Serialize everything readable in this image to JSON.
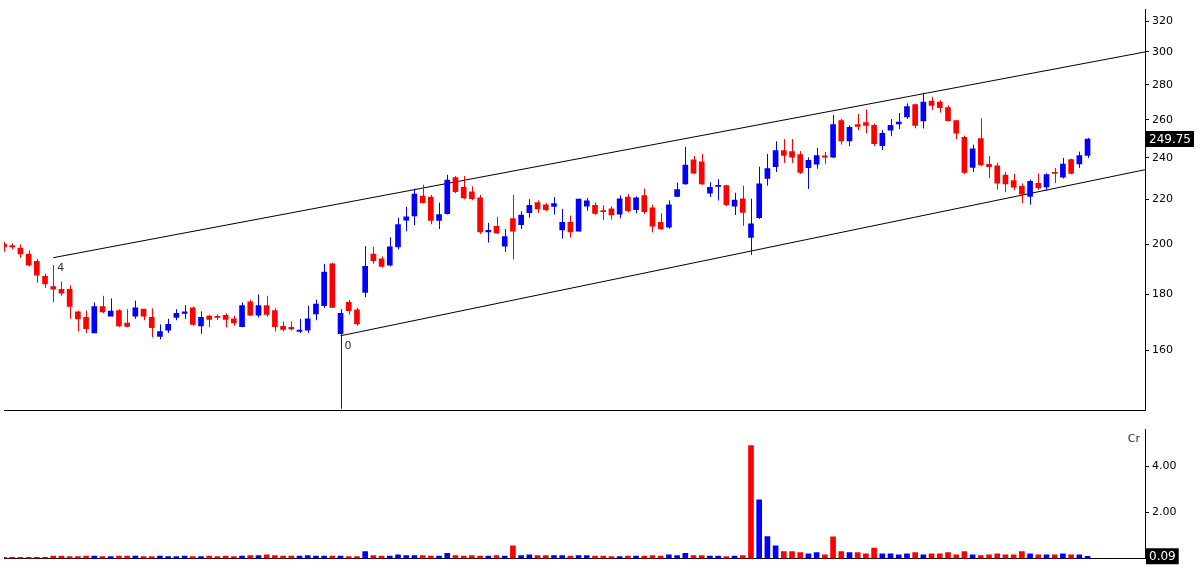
{
  "chart_data": [
    {
      "type": "candlestick",
      "log": true,
      "ylim": [
        141,
        328
      ],
      "yticks": [
        160,
        180,
        200,
        220,
        240,
        260,
        280,
        300,
        320
      ],
      "tick_labels": "y",
      "categories": [
        null,
        null,
        null,
        null,
        null,
        null,
        null,
        null,
        null,
        null,
        null,
        null,
        null,
        null,
        null,
        null,
        null,
        null,
        null,
        null,
        null,
        null,
        null,
        null,
        null,
        null,
        null,
        null,
        null,
        null,
        null,
        null,
        null,
        null,
        null,
        null,
        null,
        null,
        null,
        null,
        null,
        null,
        null,
        null,
        null,
        null,
        null,
        null,
        null,
        null,
        null,
        null,
        null,
        null,
        null,
        null,
        null,
        null,
        null,
        null,
        null,
        null,
        null,
        null,
        null,
        null,
        null,
        null,
        null,
        null,
        null,
        null,
        null,
        null,
        null,
        null,
        null,
        null,
        null,
        null,
        null,
        null,
        null,
        null,
        null,
        null,
        null,
        null,
        null,
        null,
        null,
        null,
        null,
        null,
        null,
        null,
        null,
        null,
        null,
        null,
        null,
        null,
        null,
        null,
        null,
        null,
        null,
        null,
        null,
        null,
        null,
        null,
        null,
        null,
        null,
        null,
        null,
        null,
        null,
        null,
        null,
        null,
        null,
        null,
        null,
        null,
        null,
        null,
        null,
        null,
        null,
        null,
        null,
        null,
        null,
        null,
        null,
        null,
        null,
        null
      ],
      "ohlc": [
        [
          200,
          201,
          197,
          199
        ],
        [
          199.5,
          200.5,
          198,
          199
        ],
        [
          198.5,
          200,
          194.5,
          196
        ],
        [
          196,
          197.5,
          191,
          191.5
        ],
        [
          193,
          194,
          184.5,
          187.5
        ],
        [
          187,
          188,
          182.5,
          184
        ],
        [
          183,
          191.5,
          177,
          182
        ],
        [
          182,
          185,
          179.5,
          180.5
        ],
        [
          182,
          183.5,
          171,
          175.5
        ],
        [
          173.5,
          174,
          166.5,
          171
        ],
        [
          171.5,
          174,
          166,
          167.5
        ],
        [
          166,
          177,
          166,
          175.5
        ],
        [
          175.5,
          179.5,
          173,
          173.5
        ],
        [
          172,
          178.5,
          172,
          173.8
        ],
        [
          174,
          174.5,
          168,
          168.5
        ],
        [
          169.5,
          174.5,
          168,
          168.3
        ],
        [
          172,
          177.7,
          171,
          175
        ],
        [
          174.5,
          174.5,
          170.5,
          172
        ],
        [
          171.5,
          174.8,
          164.5,
          167.8
        ],
        [
          164.8,
          169,
          163.8,
          166.5
        ],
        [
          167,
          171,
          166,
          169
        ],
        [
          171.5,
          174.5,
          170.5,
          173
        ],
        [
          173,
          176,
          171,
          173.5
        ],
        [
          175,
          175.5,
          168.5,
          169
        ],
        [
          168.5,
          173.7,
          165.7,
          171.5
        ],
        [
          172,
          172.5,
          168,
          170.8
        ],
        [
          171.8,
          172.6,
          170.5,
          171.5
        ],
        [
          172.3,
          173,
          168,
          170.8
        ],
        [
          171,
          172,
          168.5,
          169.5
        ],
        [
          168.2,
          177,
          168,
          175.8
        ],
        [
          177.2,
          178,
          172,
          172.3
        ],
        [
          172.3,
          180,
          171.5,
          175.8
        ],
        [
          175.8,
          179.5,
          171.8,
          172.6
        ],
        [
          174,
          174.8,
          166.5,
          168.2
        ],
        [
          168.3,
          170,
          166.5,
          167.2
        ],
        [
          168,
          170,
          166.8,
          167.4
        ],
        [
          166.5,
          171,
          166,
          167
        ],
        [
          167,
          175.8,
          166,
          171
        ],
        [
          172.8,
          178,
          170.5,
          176.4
        ],
        [
          175.8,
          192,
          175,
          188.7
        ],
        [
          192,
          192.5,
          175,
          175.2
        ],
        [
          165.7,
          174.5,
          141.5,
          173
        ],
        [
          177,
          178,
          172.5,
          174
        ],
        [
          174.3,
          175,
          168.5,
          169.2
        ],
        [
          180.8,
          199.3,
          179,
          191
        ],
        [
          196,
          199,
          192,
          193.3
        ],
        [
          194,
          195,
          190.5,
          191
        ],
        [
          191.5,
          203,
          191,
          199
        ],
        [
          199,
          211.6,
          198,
          208.5
        ],
        [
          210.5,
          216.5,
          205.6,
          212
        ],
        [
          212.4,
          225,
          208.3,
          222.4
        ],
        [
          221.5,
          226.8,
          218,
          218.4
        ],
        [
          221,
          222,
          208.7,
          210.4
        ],
        [
          210.4,
          218.4,
          206.6,
          213
        ],
        [
          213.4,
          231.6,
          213,
          229
        ],
        [
          230.2,
          231,
          222.8,
          223.5
        ],
        [
          225.6,
          231,
          220,
          220.6
        ],
        [
          223.4,
          226,
          219.5,
          220.2
        ],
        [
          220.6,
          222,
          204.5,
          205.3
        ],
        [
          205.3,
          209.3,
          200.8,
          206
        ],
        [
          207.8,
          212,
          204.4,
          204.9
        ],
        [
          199.3,
          206.6,
          196.9,
          203.3
        ],
        [
          211.2,
          222,
          193.8,
          205.7
        ],
        [
          208.5,
          214.5,
          206.6,
          212.8
        ],
        [
          213.8,
          220,
          211.6,
          217.2
        ],
        [
          218.4,
          219.5,
          213.8,
          215.6
        ],
        [
          217.4,
          218.3,
          214.5,
          215.2
        ],
        [
          216.7,
          221,
          213,
          218
        ],
        [
          206.2,
          215.6,
          202.5,
          209.5
        ],
        [
          209.5,
          212.5,
          203,
          205.3
        ],
        [
          205.7,
          220.2,
          205.5,
          220
        ],
        [
          216.8,
          220.6,
          214.7,
          219.2
        ],
        [
          217.2,
          218.5,
          212.8,
          213.5
        ],
        [
          214.5,
          217.2,
          210.5,
          214.3
        ],
        [
          215.6,
          216.7,
          210.8,
          212.8
        ],
        [
          213.2,
          221.8,
          211.3,
          220.2
        ],
        [
          221,
          222.4,
          214,
          214.7
        ],
        [
          215.2,
          221.3,
          213.6,
          220.6
        ],
        [
          221.7,
          225,
          213.2,
          214.3
        ],
        [
          216,
          217.5,
          205.2,
          207.8
        ],
        [
          209.5,
          213.6,
          206.3,
          206.6
        ],
        [
          207.4,
          219.5,
          206.8,
          217.4
        ],
        [
          221.3,
          227.8,
          221,
          224.5
        ],
        [
          227.2,
          245.7,
          226.8,
          236.4
        ],
        [
          239,
          241,
          232,
          232.4
        ],
        [
          238,
          242,
          226.7,
          227.2
        ],
        [
          222.8,
          228,
          221,
          225.6
        ],
        [
          226,
          229.5,
          219.4,
          226.4
        ],
        [
          226.4,
          226.8,
          216.8,
          217.5
        ],
        [
          216.8,
          223,
          212.8,
          219.6
        ],
        [
          220.2,
          226.4,
          208,
          214
        ],
        [
          203,
          220.2,
          195.6,
          208.9
        ],
        [
          211.6,
          235.6,
          211,
          227.2
        ],
        [
          229.8,
          242,
          226.4,
          234.6
        ],
        [
          235.6,
          248.5,
          233,
          243.7
        ],
        [
          243.7,
          249.7,
          237.5,
          241.2
        ],
        [
          243.2,
          249.7,
          237.5,
          240.4
        ],
        [
          241.7,
          243.5,
          232,
          232.8
        ],
        [
          235.1,
          240.3,
          224.8,
          238.8
        ],
        [
          236.9,
          245.2,
          234.6,
          241.2
        ],
        [
          241,
          243,
          236.8,
          240.4
        ],
        [
          240.4,
          262.7,
          239.8,
          257.5
        ],
        [
          259.6,
          260.5,
          246.8,
          248.7
        ],
        [
          248.7,
          257,
          246,
          256
        ],
        [
          257.5,
          263.2,
          254.4,
          256.4
        ],
        [
          258.5,
          265.8,
          252.7,
          257
        ],
        [
          257,
          258,
          246,
          247.3
        ],
        [
          246.3,
          254.5,
          244,
          252.8
        ],
        [
          254.4,
          260.5,
          251.2,
          257
        ],
        [
          257.8,
          263.8,
          255,
          258.8
        ],
        [
          261.6,
          269.2,
          260.5,
          267.4
        ],
        [
          268.5,
          269,
          255.4,
          257
        ],
        [
          259.5,
          275.4,
          255.3,
          270
        ],
        [
          270.5,
          273,
          265.4,
          268
        ],
        [
          270,
          271,
          264,
          266.8
        ],
        [
          266.8,
          268,
          259.2,
          259.6
        ],
        [
          259.6,
          260,
          249.7,
          252.8
        ],
        [
          250.6,
          251.5,
          232,
          232.8
        ],
        [
          235.2,
          246.8,
          233,
          244.6
        ],
        [
          250,
          260.8,
          235.8,
          236.5
        ],
        [
          236.8,
          241,
          229.9,
          235.6
        ],
        [
          236,
          237.5,
          224.5,
          227.6
        ],
        [
          231.5,
          233,
          223.3,
          227.2
        ],
        [
          228.8,
          232,
          224.2,
          225.6
        ],
        [
          226,
          227.5,
          218.2,
          222.3
        ],
        [
          221.3,
          229.3,
          217.5,
          228.4
        ],
        [
          227.5,
          232.3,
          224.5,
          225.3
        ],
        [
          225.8,
          232.3,
          224,
          231.7
        ],
        [
          232.7,
          235,
          227.6,
          232.3
        ],
        [
          230.4,
          240,
          229.8,
          236.9
        ],
        [
          239.1,
          239.6,
          231.8,
          232.3
        ],
        [
          237,
          243.2,
          235,
          241.2
        ],
        [
          241.2,
          250.3,
          240,
          249.75
        ],
        null,
        null,
        null,
        null,
        null,
        null,
        null
      ],
      "colors": [
        "#ff0000",
        "#ff0000",
        "#ff0000",
        "#ff0000",
        "#ff0000",
        "#ff0000",
        "#ff0000",
        "#ff0000",
        "#ff0000",
        "#ff0000",
        "#ff0000",
        "#0000ff",
        "#ff0000",
        "#0000ff",
        "#ff0000",
        "#ff0000",
        "#0000ff",
        "#ff0000",
        "#ff0000",
        "#0000ff",
        "#0000ff",
        "#0000ff",
        "#0000ff",
        "#ff0000",
        "#0000ff",
        "#ff0000",
        "#ff0000",
        "#ff0000",
        "#ff0000",
        "#0000ff",
        "#ff0000",
        "#0000ff",
        "#ff0000",
        "#ff0000",
        "#ff0000",
        "#ff0000",
        "#0000ff",
        "#0000ff",
        "#0000ff",
        "#0000ff",
        "#ff0000",
        "#0000ff",
        "#ff0000",
        "#ff0000",
        "#0000ff",
        "#ff0000",
        "#ff0000",
        "#0000ff",
        "#0000ff",
        "#0000ff",
        "#0000ff",
        "#ff0000",
        "#ff0000",
        "#0000ff",
        "#0000ff",
        "#ff0000",
        "#ff0000",
        "#ff0000",
        "#ff0000",
        "#0000ff",
        "#ff0000",
        "#0000ff",
        "#ff0000",
        "#0000ff",
        "#0000ff",
        "#ff0000",
        "#ff0000",
        "#0000ff",
        "#0000ff",
        "#ff0000",
        "#0000ff",
        "#0000ff",
        "#ff0000",
        "#ff0000",
        "#ff0000",
        "#0000ff",
        "#ff0000",
        "#0000ff",
        "#ff0000",
        "#ff0000",
        "#ff0000",
        "#0000ff",
        "#0000ff",
        "#0000ff",
        "#ff0000",
        "#ff0000",
        "#0000ff",
        "#0000ff",
        "#ff0000",
        "#0000ff",
        "#ff0000",
        "#0000ff",
        "#0000ff",
        "#0000ff",
        "#0000ff",
        "#ff0000",
        "#ff0000",
        "#ff0000",
        "#0000ff",
        "#0000ff",
        "#ff0000",
        "#0000ff",
        "#ff0000",
        "#0000ff",
        "#ff0000",
        "#ff0000",
        "#ff0000",
        "#0000ff",
        "#0000ff",
        "#0000ff",
        "#0000ff",
        "#ff0000",
        "#0000ff",
        "#ff0000",
        "#ff0000",
        "#ff0000",
        "#ff0000",
        "#ff0000",
        "#0000ff",
        "#ff0000",
        "#ff0000",
        "#ff0000",
        "#ff0000",
        "#ff0000",
        "#ff0000",
        "#0000ff",
        "#ff0000",
        "#0000ff",
        "#ff0000",
        "#0000ff",
        "#ff0000",
        "#0000ff",
        "#0000ff",
        null,
        null,
        null,
        null,
        null,
        null,
        null
      ],
      "series": [
        {
          "type": "line",
          "color": "#000000",
          "values": [
            null,
            null,
            null,
            null,
            null,
            null,
            194.5,
            null,
            null,
            null,
            null,
            null,
            null,
            null,
            null,
            null,
            null,
            null,
            null,
            null,
            null,
            null,
            null,
            null,
            null,
            null,
            null,
            null,
            null,
            null,
            null,
            null,
            null,
            null,
            null,
            null,
            null,
            null,
            null,
            null,
            null,
            null,
            null,
            null,
            null,
            null,
            null,
            null,
            null,
            null,
            null,
            null,
            null,
            null,
            null,
            null,
            null,
            null,
            null,
            null,
            null,
            null,
            null,
            null,
            null,
            null,
            null,
            null,
            null,
            null,
            null,
            null,
            null,
            null,
            null,
            null,
            null,
            null,
            null,
            null,
            null,
            null,
            null,
            null,
            null,
            null,
            null,
            null,
            null,
            null,
            null,
            null,
            null,
            null,
            null,
            null,
            null,
            null,
            null,
            null,
            null,
            null,
            null,
            null,
            null,
            null,
            null,
            null,
            null,
            null,
            null,
            null,
            null,
            null,
            null,
            null,
            null,
            null,
            null,
            null,
            null,
            null,
            null,
            null,
            null,
            null,
            null,
            null,
            null,
            null,
            null,
            null,
            null,
            null,
            null,
            null,
            null,
            null,
            null,
            300
          ]
        },
        {
          "type": "line",
          "color": "#000000",
          "values": [
            null,
            null,
            null,
            null,
            null,
            null,
            null,
            null,
            null,
            null,
            null,
            null,
            null,
            null,
            null,
            null,
            null,
            null,
            null,
            null,
            null,
            null,
            null,
            null,
            null,
            null,
            null,
            null,
            null,
            null,
            null,
            null,
            null,
            null,
            null,
            null,
            null,
            null,
            null,
            null,
            null,
            165,
            null,
            null,
            null,
            null,
            null,
            null,
            null,
            null,
            null,
            null,
            null,
            null,
            null,
            null,
            null,
            null,
            null,
            null,
            null,
            null,
            null,
            null,
            null,
            null,
            null,
            null,
            null,
            null,
            null,
            null,
            null,
            null,
            null,
            null,
            null,
            null,
            null,
            null,
            null,
            null,
            null,
            null,
            null,
            null,
            null,
            null,
            null,
            null,
            null,
            null,
            null,
            null,
            null,
            null,
            null,
            null,
            null,
            null,
            null,
            null,
            null,
            null,
            null,
            null,
            null,
            null,
            null,
            null,
            null,
            null,
            null,
            null,
            null,
            null,
            null,
            null,
            null,
            null,
            null,
            null,
            null,
            null,
            null,
            null,
            null,
            null,
            null,
            null,
            null,
            null,
            null,
            null,
            null,
            null,
            null,
            null,
            null,
            234.1
          ]
        }
      ],
      "annotations": [
        {
          "text": "4",
          "y": 194.5
        },
        {
          "text": "0",
          "y": 165
        },
        "249.75"
      ]
    },
    {
      "type": "bar",
      "ylim": [
        0,
        5.6
      ],
      "yticks": [
        {
          "value": 2,
          "label": "2.00"
        },
        {
          "value": 4,
          "label": "4.00"
        }
      ],
      "tick_labels": "y",
      "ylabel": "Cr",
      "categories": [
        null,
        null,
        null,
        null,
        null,
        null,
        null,
        null,
        null,
        null,
        null,
        null,
        null,
        null,
        null,
        null,
        null,
        null,
        null,
        null,
        null,
        null,
        null,
        null,
        null,
        null,
        null,
        null,
        null,
        null,
        null,
        null,
        null,
        null,
        null,
        null,
        null,
        null,
        null,
        null,
        null,
        null,
        null,
        null,
        null,
        null,
        null,
        null,
        null,
        null,
        null,
        null,
        null,
        null,
        null,
        null,
        null,
        null,
        null,
        null,
        null,
        null,
        null,
        null,
        null,
        null,
        null,
        null,
        null,
        null,
        null,
        null,
        null,
        null,
        null,
        null,
        null,
        null,
        null,
        null,
        null,
        null,
        null,
        null,
        null,
        null,
        null,
        null,
        null,
        null,
        null,
        null,
        null,
        null,
        null,
        null,
        null,
        null,
        null,
        null,
        null,
        null,
        null,
        null,
        null,
        null,
        null,
        null,
        null,
        null,
        null,
        null,
        null,
        null,
        null,
        null,
        null,
        null,
        null,
        null,
        null,
        null,
        null,
        null,
        null,
        null,
        null,
        null,
        null,
        null,
        null,
        null,
        null,
        null,
        null,
        null,
        null,
        null,
        null,
        null
      ],
      "values": [
        0.05,
        0.05,
        0.05,
        0.05,
        0.05,
        0.05,
        0.1,
        0.1,
        0.08,
        0.08,
        0.1,
        0.1,
        0.08,
        0.08,
        0.1,
        0.1,
        0.1,
        0.08,
        0.08,
        0.1,
        0.08,
        0.08,
        0.1,
        0.08,
        0.08,
        0.1,
        0.08,
        0.1,
        0.08,
        0.1,
        0.12,
        0.12,
        0.15,
        0.12,
        0.1,
        0.1,
        0.1,
        0.12,
        0.1,
        0.1,
        0.1,
        0.1,
        0.08,
        0.08,
        0.3,
        0.12,
        0.1,
        0.1,
        0.15,
        0.12,
        0.12,
        0.12,
        0.1,
        0.1,
        0.22,
        0.12,
        0.1,
        0.12,
        0.1,
        0.1,
        0.12,
        0.1,
        0.55,
        0.12,
        0.15,
        0.12,
        0.12,
        0.12,
        0.12,
        0.1,
        0.12,
        0.12,
        0.1,
        0.1,
        0.08,
        0.08,
        0.1,
        0.1,
        0.1,
        0.12,
        0.1,
        0.15,
        0.12,
        0.22,
        0.12,
        0.12,
        0.1,
        0.1,
        0.08,
        0.1,
        0.12,
        4.9,
        2.55,
        0.95,
        0.55,
        0.3,
        0.3,
        0.25,
        0.2,
        0.25,
        0.15,
        0.94,
        0.3,
        0.25,
        0.25,
        0.2,
        0.45,
        0.2,
        0.2,
        0.15,
        0.2,
        0.25,
        0.15,
        0.2,
        0.2,
        0.25,
        0.15,
        0.3,
        0.15,
        0.12,
        0.15,
        0.2,
        0.15,
        0.15,
        0.3,
        0.2,
        0.15,
        0.15,
        0.15,
        0.2,
        0.15,
        0.15,
        0.09,
        null,
        null,
        null,
        null,
        null,
        null,
        null
      ],
      "colors": [
        "#ff0000",
        "#ff0000",
        "#ff0000",
        "#ff0000",
        "#ff0000",
        "#ff0000",
        "#ff0000",
        "#ff0000",
        "#ff0000",
        "#ff0000",
        "#ff0000",
        "#0000ff",
        "#ff0000",
        "#0000ff",
        "#ff0000",
        "#ff0000",
        "#0000ff",
        "#ff0000",
        "#ff0000",
        "#0000ff",
        "#0000ff",
        "#0000ff",
        "#0000ff",
        "#ff0000",
        "#0000ff",
        "#ff0000",
        "#ff0000",
        "#ff0000",
        "#ff0000",
        "#0000ff",
        "#ff0000",
        "#0000ff",
        "#ff0000",
        "#ff0000",
        "#ff0000",
        "#ff0000",
        "#0000ff",
        "#0000ff",
        "#0000ff",
        "#0000ff",
        "#ff0000",
        "#0000ff",
        "#ff0000",
        "#ff0000",
        "#0000ff",
        "#ff0000",
        "#ff0000",
        "#0000ff",
        "#0000ff",
        "#0000ff",
        "#0000ff",
        "#ff0000",
        "#ff0000",
        "#0000ff",
        "#0000ff",
        "#ff0000",
        "#ff0000",
        "#ff0000",
        "#ff0000",
        "#0000ff",
        "#ff0000",
        "#0000ff",
        "#ff0000",
        "#0000ff",
        "#0000ff",
        "#ff0000",
        "#ff0000",
        "#0000ff",
        "#0000ff",
        "#ff0000",
        "#0000ff",
        "#0000ff",
        "#ff0000",
        "#ff0000",
        "#ff0000",
        "#0000ff",
        "#ff0000",
        "#0000ff",
        "#ff0000",
        "#ff0000",
        "#ff0000",
        "#0000ff",
        "#0000ff",
        "#0000ff",
        "#ff0000",
        "#ff0000",
        "#0000ff",
        "#0000ff",
        "#ff0000",
        "#0000ff",
        "#ff0000",
        "#ff0000",
        "#0000ff",
        "#0000ff",
        "#0000ff",
        "#ff0000",
        "#ff0000",
        "#ff0000",
        "#0000ff",
        "#0000ff",
        "#ff0000",
        "#ff0000",
        "#ff0000",
        "#0000ff",
        "#ff0000",
        "#ff0000",
        "#ff0000",
        "#0000ff",
        "#0000ff",
        "#0000ff",
        "#0000ff",
        "#ff0000",
        "#0000ff",
        "#ff0000",
        "#ff0000",
        "#ff0000",
        "#ff0000",
        "#ff0000",
        "#0000ff",
        "#ff0000",
        "#ff0000",
        "#ff0000",
        "#ff0000",
        "#ff0000",
        "#ff0000",
        "#0000ff",
        "#ff0000",
        "#0000ff",
        "#ff0000",
        "#0000ff",
        "#ff0000",
        "#0000ff",
        "#0000ff",
        null,
        null,
        null,
        null,
        null,
        null,
        null
      ],
      "annotations": [
        "0.09"
      ]
    }
  ]
}
